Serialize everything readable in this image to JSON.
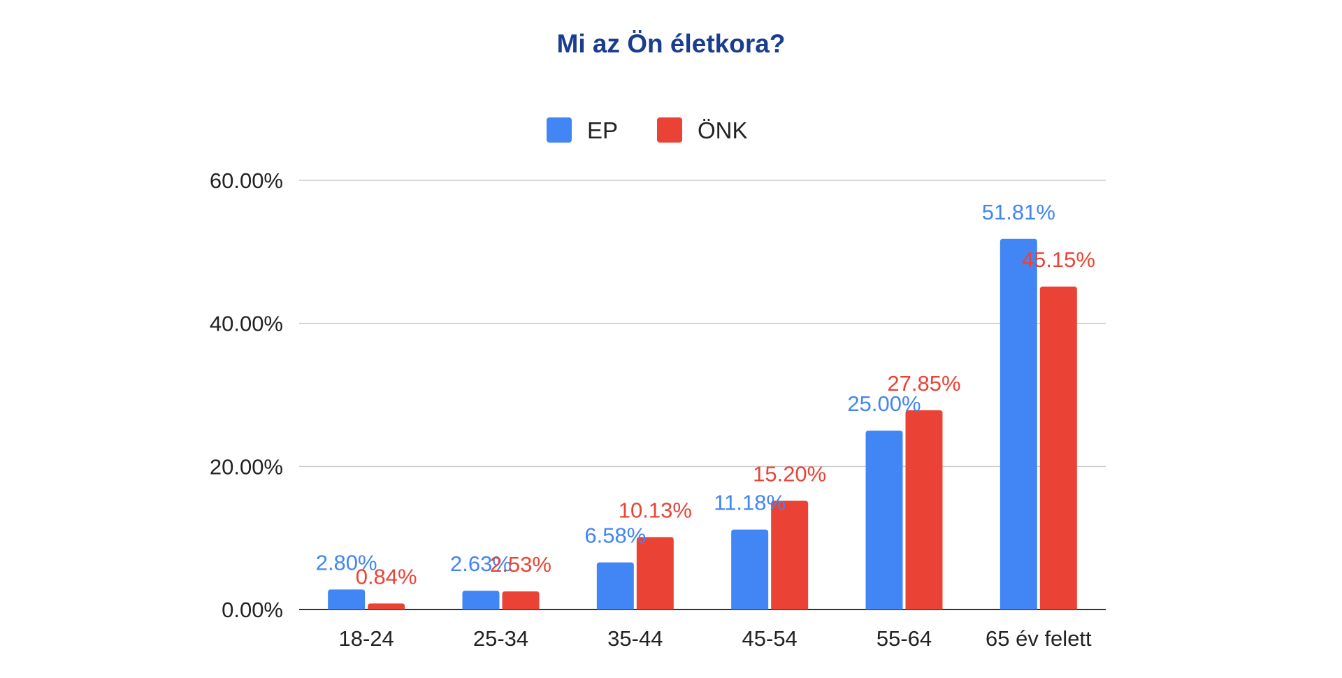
{
  "chart_data": {
    "type": "bar",
    "title": "Mi az Ön életkora?",
    "categories": [
      "18-24",
      "25-34",
      "35-44",
      "45-54",
      "55-64",
      "65 év felett"
    ],
    "series": [
      {
        "name": "EP",
        "color": "#4285f4",
        "values": [
          2.8,
          2.63,
          6.58,
          11.18,
          25.0,
          51.81
        ],
        "labels": [
          "2.80%",
          "2.63%",
          "6.58%",
          "11.18%",
          "25.00%",
          "51.81%"
        ]
      },
      {
        "name": "ÖNK",
        "color": "#ea4335",
        "values": [
          0.84,
          2.53,
          10.13,
          15.2,
          27.85,
          45.15
        ],
        "labels": [
          "0.84%",
          "2.53%",
          "10.13%",
          "15.20%",
          "27.85%",
          "45.15%"
        ]
      }
    ],
    "ylim": [
      0,
      60
    ],
    "yticks": [
      0,
      20,
      40,
      60
    ],
    "ytick_labels": [
      "0.00%",
      "20.00%",
      "40.00%",
      "60.00%"
    ],
    "grid": true,
    "legend": "top-center"
  }
}
